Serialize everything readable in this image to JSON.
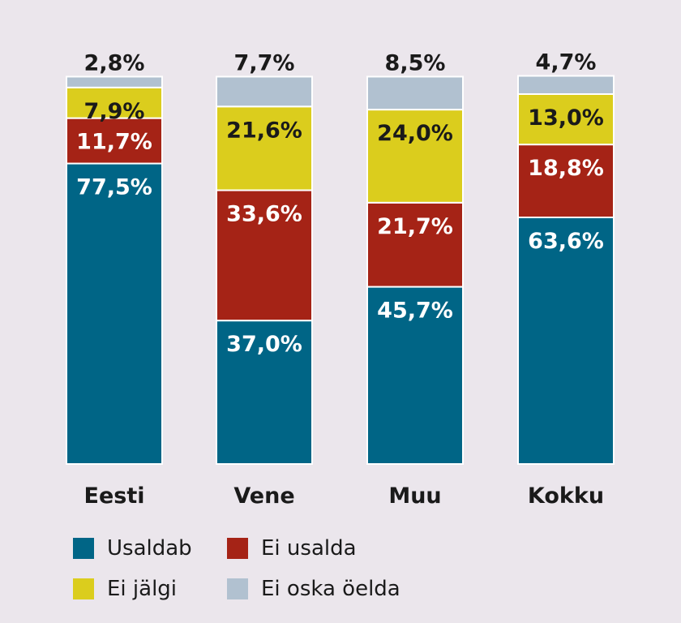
{
  "chart_data": {
    "type": "bar",
    "stacked": true,
    "categories": [
      "Eesti",
      "Vene",
      "Muu",
      "Kokku"
    ],
    "series": [
      {
        "name": "Usaldab",
        "color": "#006586",
        "label_color": "#ffffff",
        "values": [
          77.5,
          37.0,
          45.7,
          63.6
        ],
        "labels": [
          "77,5%",
          "37,0%",
          "45,7%",
          "63,6%"
        ]
      },
      {
        "name": "Ei usalda",
        "color": "#a52316",
        "label_color": "#ffffff",
        "values": [
          11.7,
          33.6,
          21.7,
          18.8
        ],
        "labels": [
          "11,7%",
          "33,6%",
          "21,7%",
          "18,8%"
        ]
      },
      {
        "name": "Ei jälgi",
        "color": "#dbcd1d",
        "label_color": "#1a1a1a",
        "values": [
          7.9,
          21.6,
          24.0,
          13.0
        ],
        "labels": [
          "7,9%",
          "21,6%",
          "24,0%",
          "13,0%"
        ]
      },
      {
        "name": "Ei oska öelda",
        "color": "#b1c1d0",
        "label_color": "#1a1a1a",
        "values": [
          2.8,
          7.7,
          8.5,
          4.7
        ],
        "labels": [
          "2,8%",
          "7,7%",
          "8,5%",
          "4,7%"
        ]
      }
    ],
    "ylim": [
      0,
      100
    ],
    "grid": false,
    "legend_position": "bottom",
    "title": "",
    "xlabel": "",
    "ylabel": ""
  },
  "legend": {
    "items": [
      {
        "label": "Usaldab",
        "color": "#006586"
      },
      {
        "label": "Ei usalda",
        "color": "#a52316"
      },
      {
        "label": "Ei jälgi",
        "color": "#dbcd1d"
      },
      {
        "label": "Ei oska öelda",
        "color": "#b1c1d0"
      }
    ]
  },
  "colors": {
    "background": "#ebe6ec",
    "text": "#1a1a1a"
  }
}
